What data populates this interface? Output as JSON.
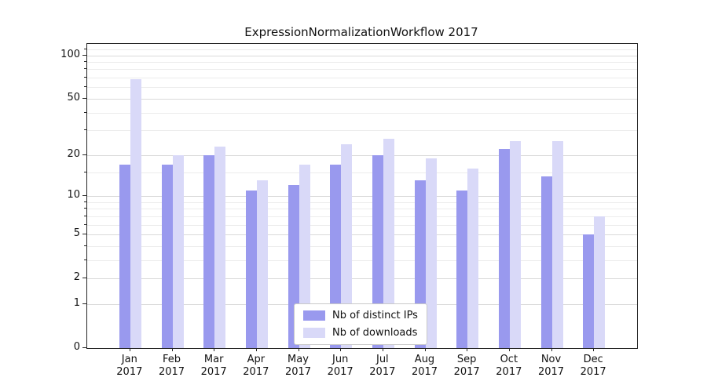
{
  "chart_data": {
    "type": "bar",
    "title": "ExpressionNormalizationWorkflow 2017",
    "categories": [
      "Jan",
      "Feb",
      "Mar",
      "Apr",
      "May",
      "Jun",
      "Jul",
      "Aug",
      "Sep",
      "Oct",
      "Nov",
      "Dec"
    ],
    "year_label": "2017",
    "series": [
      {
        "name": "Nb of distinct IPs",
        "color": "#9999ee",
        "values": [
          17,
          17,
          20,
          11,
          12,
          17,
          20,
          13,
          11,
          22,
          14,
          5
        ]
      },
      {
        "name": "Nb of downloads",
        "color": "#d9d9f8",
        "values": [
          68,
          20,
          23,
          13,
          17,
          24,
          26,
          19,
          16,
          25,
          25,
          7
        ]
      }
    ],
    "xlabel": "",
    "ylabel": "",
    "yscale": "log1p",
    "ylim": [
      0,
      120
    ],
    "yticks": [
      0,
      1,
      2,
      5,
      10,
      20,
      50,
      100
    ],
    "yticks_minor": [
      3,
      4,
      6,
      7,
      8,
      9,
      15,
      30,
      40,
      60,
      70,
      80,
      90,
      110
    ],
    "grid": true,
    "legend_position": "bottom-center"
  },
  "colors": {
    "grid_major": "#d9d9d9",
    "grid_minor": "#ececec",
    "axis": "#262626",
    "text": "#111111"
  }
}
